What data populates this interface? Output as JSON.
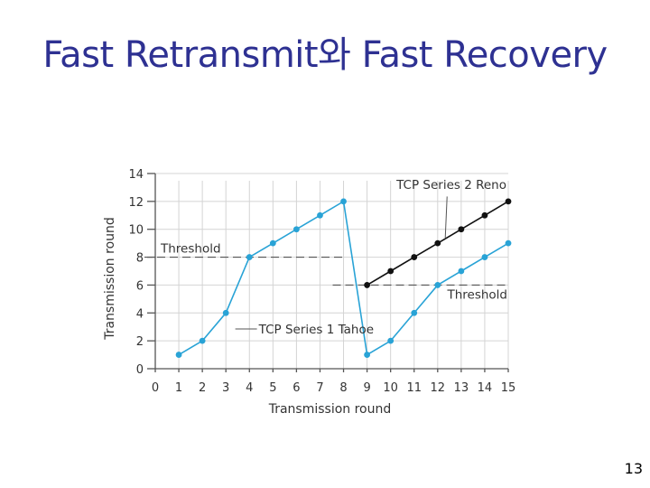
{
  "slide": {
    "title": "Fast Retransmit와 Fast Recovery",
    "page_number": "13"
  },
  "chart_data": {
    "type": "line",
    "xlabel": "Transmission round",
    "ylabel": "Transmission round",
    "xlim": [
      0,
      15
    ],
    "ylim": [
      0,
      14
    ],
    "x_ticks": [
      0,
      1,
      2,
      3,
      4,
      5,
      6,
      7,
      8,
      9,
      10,
      11,
      12,
      13,
      14,
      15
    ],
    "y_ticks": [
      0,
      2,
      4,
      6,
      8,
      10,
      12,
      14
    ],
    "grid": true,
    "series": [
      {
        "name": "TCP Series 1 Tahoe",
        "color": "#29a3d6",
        "x": [
          1,
          2,
          3,
          4,
          5,
          6,
          7,
          8,
          9,
          10,
          11,
          12,
          13,
          14,
          15
        ],
        "y": [
          1,
          2,
          4,
          8,
          9,
          10,
          11,
          12,
          1,
          2,
          4,
          6,
          7,
          8,
          9
        ]
      },
      {
        "name": "TCP Series 2 Reno",
        "color": "#111111",
        "x": [
          9,
          10,
          11,
          12,
          13,
          14,
          15
        ],
        "y": [
          6,
          7,
          8,
          9,
          10,
          11,
          12
        ]
      }
    ],
    "thresholds": [
      {
        "label": "Threshold",
        "x_start": 0,
        "x_end": 8,
        "y": 8
      },
      {
        "label": "Threshold",
        "x_start": 8,
        "x_end": 15,
        "y": 6
      }
    ]
  }
}
